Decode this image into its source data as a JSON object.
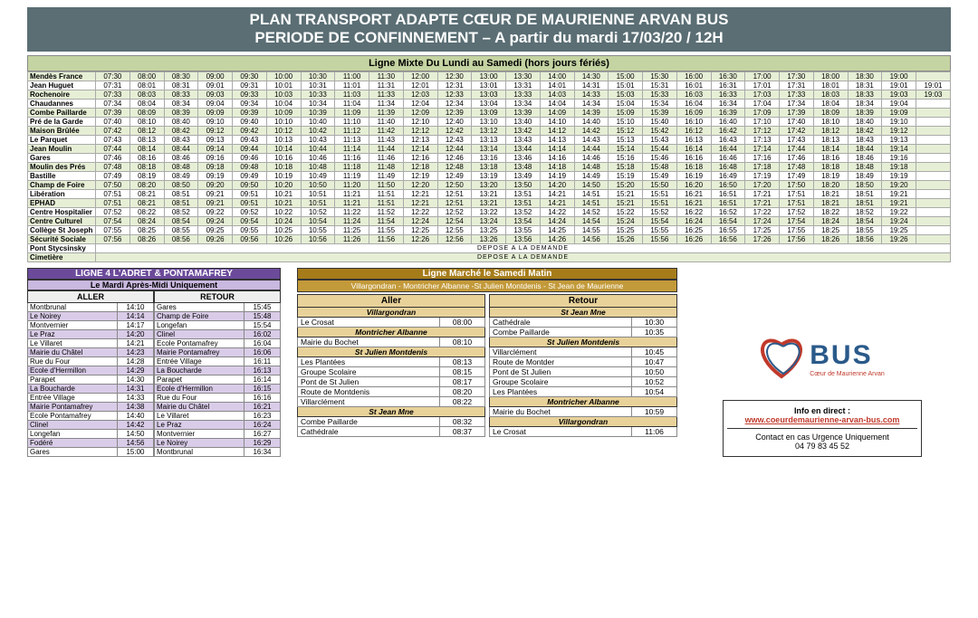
{
  "header_l1": "PLAN TRANSPORT ADAPTE CŒUR DE MAURIENNE ARVAN BUS",
  "header_l2": "PERIODE DE CONFINNEMENT – A partir du mardi 17/03/20 / 12H",
  "main_title": "Ligne Mixte Du Lundi au Samedi (hors jours fériés)",
  "columns": 24,
  "rows": [
    {
      "stop": "Mendès France",
      "off": "07:30",
      "step": 30,
      "count": 24,
      "green": true,
      "extra": null
    },
    {
      "stop": "Jean Huguet",
      "off": "07:31",
      "step": 30,
      "count": 24,
      "green": false,
      "extra": "19:01"
    },
    {
      "stop": "Rochenoire",
      "off": "07:33",
      "step": 30,
      "count": 24,
      "green": true,
      "extra": "19:03"
    },
    {
      "stop": "Chaudannes",
      "off": "07:34",
      "step": 30,
      "count": 24,
      "green": false,
      "extra": null
    },
    {
      "stop": "Combe Paillarde",
      "off": "07:39",
      "step": 30,
      "count": 24,
      "green": true,
      "extra": null
    },
    {
      "stop": "Pré de la Garde",
      "off": "07:40",
      "step": 30,
      "count": 24,
      "green": false,
      "extra": null
    },
    {
      "stop": "Maison Brûlée",
      "off": "07:42",
      "step": 30,
      "count": 24,
      "green": true,
      "extra": null
    },
    {
      "stop": "Le Parquet",
      "off": "07:43",
      "step": 30,
      "count": 24,
      "green": false,
      "extra": null
    },
    {
      "stop": "Jean Moulin",
      "off": "07:44",
      "step": 30,
      "count": 24,
      "green": true,
      "extra": null
    },
    {
      "stop": "Gares",
      "off": "07:46",
      "step": 30,
      "count": 24,
      "green": false,
      "extra": null
    },
    {
      "stop": "Moulin des Prés",
      "off": "07:48",
      "step": 30,
      "count": 24,
      "green": true,
      "extra": null
    },
    {
      "stop": "Bastille",
      "off": "07:49",
      "step": 30,
      "count": 24,
      "green": false,
      "extra": null
    },
    {
      "stop": "Champ de Foire",
      "off": "07:50",
      "step": 30,
      "count": 24,
      "green": true,
      "extra": null
    },
    {
      "stop": "Libération",
      "off": "07:51",
      "step": 30,
      "count": 24,
      "green": false,
      "extra": null
    },
    {
      "stop": "EPHAD",
      "off": "07:51",
      "alt": "08:21",
      "step": 30,
      "count": 24,
      "green": true,
      "extra": null
    },
    {
      "stop": "Centre Hospitalier",
      "off": "07:52",
      "step": 30,
      "count": 24,
      "green": false,
      "extra": null
    },
    {
      "stop": "Centre Culturel",
      "off": "07:54",
      "step": 30,
      "count": 24,
      "green": true,
      "extra": null
    },
    {
      "stop": "Collège St Joseph",
      "off": "07:55",
      "step": 30,
      "count": 24,
      "green": false,
      "extra": null
    },
    {
      "stop": "Sécurité Sociale",
      "off": "07:56",
      "step": 30,
      "count": 24,
      "green": true,
      "extra": null
    }
  ],
  "demande_rows": [
    {
      "stop": "Pont Stycsinsky",
      "text": "DEPOSE A LA DEMANDE",
      "green": false
    },
    {
      "stop": "Cimetière",
      "text": "DEPOSE A LA DEMANDE",
      "green": true
    }
  ],
  "ligne4": {
    "title": "LIGNE 4 L'ADRET & PONTAMAFREY",
    "subtitle": "Le Mardi Après-Midi Uniquement",
    "aller_label": "ALLER",
    "retour_label": "RETOUR",
    "aller": [
      [
        "Montbrunal",
        "14:10"
      ],
      [
        "Le Noirey",
        "14:14"
      ],
      [
        "Montvernier",
        "14:17"
      ],
      [
        "Le Praz",
        "14:20"
      ],
      [
        "Le Villaret",
        "14:21"
      ],
      [
        "Mairie du Châtel",
        "14:23"
      ],
      [
        "Rue du Four",
        "14:28"
      ],
      [
        "Ecole d'Hermillon",
        "14:29"
      ],
      [
        "Parapet",
        "14:30"
      ],
      [
        "La Boucharde",
        "14:31"
      ],
      [
        "Entrée Village",
        "14:33"
      ],
      [
        "Mairie Pontamafrey",
        "14:38"
      ],
      [
        "Ecole Pontamafrey",
        "14:40"
      ],
      [
        "Clinel",
        "14:42"
      ],
      [
        "Longefan",
        "14:50"
      ],
      [
        "Fodéré",
        "14:56"
      ],
      [
        "Gares",
        "15:00"
      ]
    ],
    "aller_purple": [
      1,
      3,
      5,
      7,
      9,
      11,
      13,
      15
    ],
    "retour": [
      [
        "Gares",
        "15:45"
      ],
      [
        "Champ de Foire",
        "15:48"
      ],
      [
        "Longefan",
        "15:54"
      ],
      [
        "Clinel",
        "16:02"
      ],
      [
        "Ecole Pontamafrey",
        "16:04"
      ],
      [
        "Mairie Pontamafrey",
        "16:06"
      ],
      [
        "Entrée Village",
        "16:11"
      ],
      [
        "La Boucharde",
        "16:13"
      ],
      [
        "Parapet",
        "16:14"
      ],
      [
        "Ecole d'Hermillon",
        "16:15"
      ],
      [
        "Rue du Four",
        "16:16"
      ],
      [
        "Mairie du Châtel",
        "16:21"
      ],
      [
        "Le Villaret",
        "16:23"
      ],
      [
        "Le Praz",
        "16:24"
      ],
      [
        "Montvernier",
        "16:27"
      ],
      [
        "Le Noirey",
        "16:29"
      ],
      [
        "Montbrunal",
        "16:34"
      ]
    ],
    "retour_purple": [
      1,
      3,
      5,
      7,
      9,
      11,
      13,
      15
    ]
  },
  "marche": {
    "title": "Ligne Marché le Samedi Matin",
    "subtitle": "Villargondran - Montricher Albanne -St Julien Montdenis - St Jean de Maurienne",
    "aller_label": "Aller",
    "retour_label": "Retour",
    "aller": [
      {
        "zone": "Villargondran"
      },
      {
        "stop": "Le Crosat",
        "t": "08:00"
      },
      {
        "zone": "Montricher Albanne"
      },
      {
        "stop": "Mairie du Bochet",
        "t": "08:10"
      },
      {
        "zone": "St Julien Montdenis"
      },
      {
        "stop": "Les Plantées",
        "t": "08:13"
      },
      {
        "stop": "Groupe Scolaire",
        "t": "08:15"
      },
      {
        "stop": "Pont de St Julien",
        "t": "08:17"
      },
      {
        "stop": "Route de Montdenis",
        "t": "08:20"
      },
      {
        "stop": "Villarclément",
        "t": "08:22"
      },
      {
        "zone": "St Jean Mne"
      },
      {
        "stop": "Combe Paillarde",
        "t": "08:32"
      },
      {
        "stop": "Cathédrale",
        "t": "08:37"
      }
    ],
    "retour": [
      {
        "zone": "St Jean Mne"
      },
      {
        "stop": "Cathédrale",
        "t": "10:30"
      },
      {
        "stop": "Combe Paillarde",
        "t": "10:35"
      },
      {
        "zone": "St Julien Montdenis"
      },
      {
        "stop": "Villarclément",
        "t": "10:45"
      },
      {
        "stop": "Route de Montder",
        "t": "10:47"
      },
      {
        "stop": "Pont de St Julien",
        "t": "10:50"
      },
      {
        "stop": "Groupe Scolaire",
        "t": "10:52"
      },
      {
        "stop": "Les Plantées",
        "t": "10:54"
      },
      {
        "zone": "Montricher Albanne"
      },
      {
        "stop": "Mairie du Bochet",
        "t": "10:59"
      },
      {
        "zone": "Villargondran"
      },
      {
        "stop": "Le Crosat",
        "t": "11:06"
      }
    ]
  },
  "logo": {
    "big": "BUS",
    "small": "Cœur de Maurienne Arvan"
  },
  "info": {
    "title": "Info en direct :",
    "url": "www.coeurdemaurienne-arvan-bus.com",
    "contact": "Contact en cas Urgence Uniquement",
    "phone": "04 79 83 45 52"
  }
}
